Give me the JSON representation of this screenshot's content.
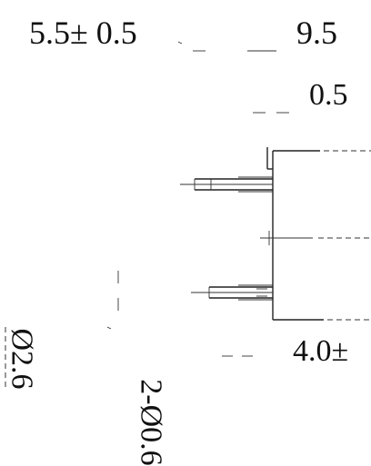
{
  "labels": {
    "width": "5.5± 0.5",
    "top": "9.5",
    "step": "0.5",
    "pitch": "4.0±",
    "pin_diameter": "2-Ø0.6",
    "body_diameter": "Ø2.6"
  }
}
